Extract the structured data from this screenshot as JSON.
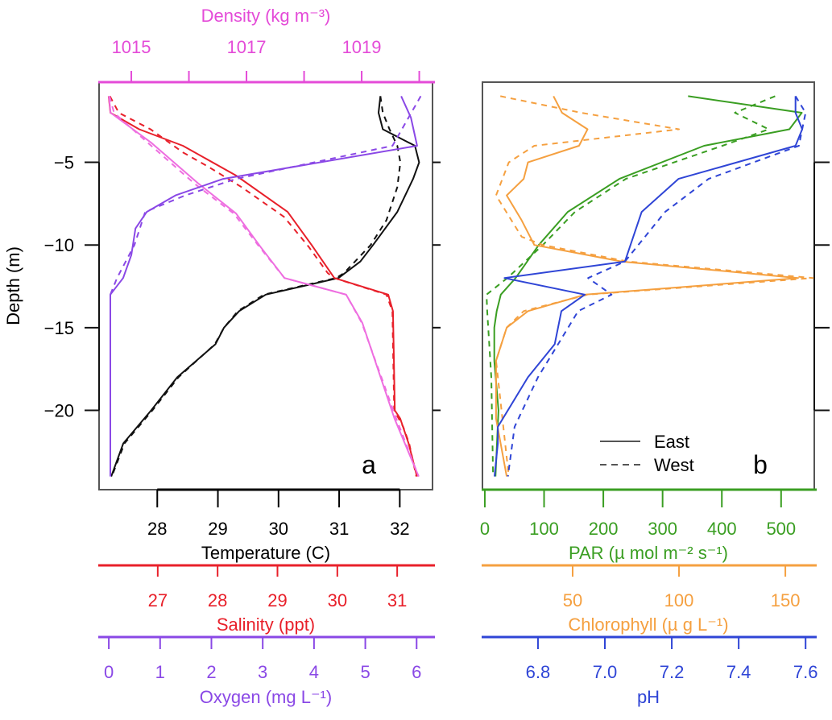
{
  "chart_data": [
    {
      "type": "line",
      "panel_label": "a",
      "depth_axis": {
        "label": "Depth (m)",
        "ticks": [
          -5,
          -10,
          -15,
          -20
        ],
        "tick_labels": [
          "−5",
          "−10",
          "−15",
          "−20"
        ],
        "range": [
          -24.8,
          -0.15
        ]
      },
      "x_axes": {
        "density": {
          "label": "Density (kg m⁻³)",
          "color": "#e44bd8",
          "position": "top",
          "range": [
            1014.44,
            1020.23
          ],
          "ticks": [
            1015,
            1016,
            1017,
            1018,
            1019,
            1020
          ],
          "tick_labels": [
            "1015",
            "",
            "1017",
            "",
            "1019",
            ""
          ]
        },
        "temperature": {
          "label": "Temperature (C)",
          "color": "#000000",
          "position": "bottom-1",
          "range": [
            27.04,
            32.54
          ],
          "ticks": [
            28,
            29,
            30,
            31,
            32
          ],
          "tick_labels": [
            "28",
            "29",
            "30",
            "31",
            "32"
          ]
        },
        "salinity": {
          "label": "Salinity (ppt)",
          "color": "#e8202a",
          "position": "bottom-2",
          "range": [
            26.02,
            31.59
          ],
          "ticks": [
            27,
            28,
            29,
            30,
            31
          ],
          "tick_labels": [
            "27",
            "28",
            "29",
            "30",
            "31"
          ]
        },
        "oxygen": {
          "label": "Oxygen (mg L⁻¹)",
          "color": "#8a48e6",
          "position": "bottom-3",
          "range": [
            -0.19,
            6.31
          ],
          "ticks": [
            0,
            1,
            2,
            3,
            4,
            5,
            6
          ],
          "tick_labels": [
            "0",
            "1",
            "2",
            "3",
            "4",
            "5",
            "6"
          ]
        }
      },
      "series": [
        {
          "axis": "temperature",
          "site": "East",
          "color": "#111111",
          "depth": [
            -1,
            -2,
            -3,
            -4,
            -5,
            -6,
            -8,
            -10,
            -11,
            -12,
            -13,
            -14,
            -15,
            -16,
            -18,
            -20,
            -22,
            -24
          ],
          "values": [
            31.68,
            31.65,
            31.72,
            32.25,
            32.32,
            32.22,
            31.96,
            31.56,
            31.35,
            30.99,
            29.79,
            29.35,
            29.1,
            28.96,
            28.33,
            27.9,
            27.44,
            27.24
          ]
        },
        {
          "axis": "temperature",
          "site": "West",
          "color": "#111111",
          "depth": [
            -1,
            -2,
            -3,
            -4,
            -5,
            -6.5,
            -8.5,
            -10,
            -11.7,
            -12,
            -13,
            -14,
            -15,
            -16,
            -18,
            -20,
            -22,
            -24
          ],
          "values": [
            31.68,
            31.72,
            31.83,
            31.96,
            32.01,
            31.96,
            31.78,
            31.52,
            31.08,
            30.95,
            29.76,
            29.33,
            29.1,
            28.95,
            28.35,
            27.92,
            27.46,
            27.25
          ]
        },
        {
          "axis": "salinity",
          "site": "East",
          "color": "#e8202a",
          "depth": [
            -1,
            -2,
            -3,
            -4,
            -5.8,
            -8,
            -10,
            -12,
            -13,
            -14,
            -16,
            -20,
            -20.5,
            -22,
            -24
          ],
          "values": [
            26.18,
            26.21,
            26.69,
            27.42,
            28.31,
            29.17,
            29.57,
            29.95,
            30.85,
            30.93,
            30.94,
            30.96,
            31.05,
            31.19,
            31.33
          ]
        },
        {
          "axis": "salinity",
          "site": "West",
          "color": "#e8202a",
          "depth": [
            -1,
            -2,
            -3,
            -4.4,
            -5.3,
            -6.5,
            -8.3,
            -10.1,
            -11.7,
            -12,
            -13,
            -14,
            -16,
            -20,
            -21,
            -22,
            -24
          ],
          "values": [
            26.2,
            26.35,
            26.88,
            27.42,
            27.86,
            28.4,
            29.11,
            29.52,
            29.84,
            29.95,
            30.82,
            30.92,
            30.93,
            30.95,
            31.1,
            31.2,
            31.32
          ]
        },
        {
          "axis": "density",
          "site": "East",
          "color": "#ee6ee0",
          "depth": [
            -1,
            -2,
            -3.8,
            -6.3,
            -8.1,
            -10.1,
            -12,
            -13,
            -14.7,
            -20.5,
            -24
          ],
          "values": [
            1014.61,
            1014.64,
            1015.34,
            1016.17,
            1016.82,
            1017.24,
            1017.66,
            1018.73,
            1019.01,
            1019.57,
            1019.99
          ]
        },
        {
          "axis": "density",
          "site": "West",
          "color": "#ee6ee0",
          "depth": [
            -1,
            -2,
            -3.8,
            -6.3,
            -8.1,
            -10.1,
            -12,
            -13,
            -14.7,
            -20.5,
            -24
          ],
          "values": [
            1014.62,
            1014.7,
            1015.28,
            1016.1,
            1016.78,
            1017.22,
            1017.66,
            1018.73,
            1019.0,
            1019.6,
            1019.99
          ]
        },
        {
          "axis": "oxygen",
          "site": "East",
          "color": "#8a48e6",
          "depth": [
            -1,
            -2.3,
            -4,
            -6,
            -7,
            -8,
            -9,
            -10.6,
            -12,
            -13,
            -24
          ],
          "values": [
            5.7,
            5.89,
            6.01,
            2.23,
            1.3,
            0.74,
            0.52,
            0.44,
            0.28,
            0.03,
            0.03
          ]
        },
        {
          "axis": "oxygen",
          "site": "West",
          "color": "#8a48e6",
          "depth": [
            -1,
            -4,
            -6,
            -7,
            -8,
            -10,
            -12,
            -13,
            -24
          ],
          "values": [
            6.08,
            5.53,
            2.48,
            1.49,
            0.71,
            0.5,
            0.16,
            0.03,
            0.03
          ]
        }
      ]
    },
    {
      "type": "line",
      "panel_label": "b",
      "depth_axis": {
        "ticks": [
          -5,
          -10,
          -15,
          -20
        ],
        "range": [
          -24.8,
          -0.15
        ]
      },
      "legend": {
        "placement": "bottom-right",
        "entries": [
          {
            "label": "East",
            "style": "solid"
          },
          {
            "label": "West",
            "style": "dashed"
          }
        ]
      },
      "x_axes": {
        "par": {
          "label": "PAR (µ mol m⁻² s⁻¹)",
          "color": "#3a9e22",
          "position": "bottom-1",
          "range": [
            -4,
            556
          ],
          "ticks": [
            0,
            100,
            200,
            300,
            400,
            500
          ],
          "tick_labels": [
            "0",
            "100",
            "200",
            "300",
            "400",
            "500"
          ]
        },
        "chlorophyll": {
          "label": "Chlorophyll (µ g L⁻¹)",
          "color": "#f5a040",
          "position": "bottom-2",
          "range": [
            7.6,
            163.6
          ],
          "ticks": [
            50,
            100,
            150
          ],
          "tick_labels": [
            "50",
            "100",
            "150"
          ]
        },
        "ph": {
          "label": "pH",
          "color": "#2f45d6",
          "position": "bottom-3",
          "range": [
            6.634,
            7.626
          ],
          "ticks": [
            6.8,
            7.0,
            7.2,
            7.4,
            7.6
          ],
          "tick_labels": [
            "6.8",
            "7.0",
            "7.2",
            "7.4",
            "7.6"
          ]
        }
      },
      "series": [
        {
          "axis": "par",
          "site": "East",
          "color": "#3a9e22",
          "depth": [
            -1,
            -2,
            -3,
            -4,
            -6,
            -8,
            -10,
            -12,
            -13,
            -14,
            -15,
            -17,
            -20,
            -24
          ],
          "values": [
            343,
            535,
            514,
            370,
            227,
            140,
            91,
            52,
            27,
            20,
            16,
            16,
            23,
            18
          ]
        },
        {
          "axis": "par",
          "site": "West",
          "color": "#3a9e22",
          "depth": [
            -1,
            -2,
            -3,
            -4,
            -6,
            -8,
            -10,
            -12,
            -13,
            -14,
            -18,
            -24
          ],
          "values": [
            490,
            422,
            479,
            401,
            238,
            152,
            98,
            38,
            3,
            4,
            11,
            14
          ]
        },
        {
          "axis": "chlorophyll",
          "site": "East",
          "color": "#f5a040",
          "depth": [
            -1,
            -2,
            -3,
            -4,
            -5,
            -6,
            -7,
            -8.5,
            -10,
            -11,
            -12,
            -13,
            -14,
            -15,
            -17,
            -20.5,
            -24
          ],
          "values": [
            41,
            45,
            57,
            53,
            29,
            27,
            19,
            26,
            32,
            73,
            156,
            56,
            29,
            19,
            14,
            14,
            19
          ]
        },
        {
          "axis": "chlorophyll",
          "site": "West",
          "color": "#f5a040",
          "depth": [
            -1,
            -2,
            -3,
            -4,
            -5,
            -7,
            -9.5,
            -10,
            -11,
            -12,
            -13,
            -14,
            -15,
            -17,
            -24
          ],
          "values": [
            16,
            54,
            100,
            32,
            20,
            14,
            26,
            36,
            76,
            163,
            57,
            27,
            19,
            14,
            20
          ]
        },
        {
          "axis": "ph",
          "site": "East",
          "color": "#2f45d6",
          "depth": [
            -1,
            -2,
            -3,
            -4,
            -6,
            -8,
            -11,
            -12,
            -13,
            -14,
            -16,
            -18,
            -21,
            -22,
            -24
          ],
          "values": [
            7.57,
            7.57,
            7.59,
            7.57,
            7.22,
            7.11,
            7.06,
            6.7,
            6.94,
            6.87,
            6.85,
            6.77,
            6.68,
            6.68,
            6.67
          ]
        },
        {
          "axis": "ph",
          "site": "West",
          "color": "#2f45d6",
          "depth": [
            -1,
            -2,
            -3,
            -4,
            -6,
            -8,
            -10,
            -11,
            -12,
            -13,
            -14,
            -16,
            -18,
            -21,
            -24
          ],
          "values": [
            7.57,
            7.6,
            7.59,
            7.58,
            7.31,
            7.18,
            7.1,
            7.06,
            6.95,
            7.02,
            6.92,
            6.86,
            6.8,
            6.73,
            6.71
          ]
        }
      ]
    }
  ]
}
